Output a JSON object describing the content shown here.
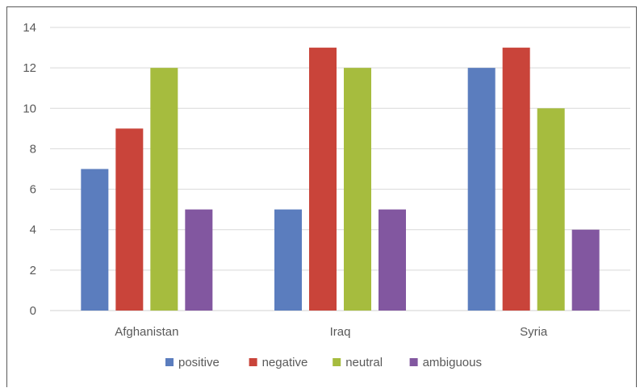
{
  "chart_data": {
    "type": "bar",
    "categories": [
      "Afghanistan",
      "Iraq",
      "Syria"
    ],
    "series": [
      {
        "name": "positive",
        "values": [
          7,
          5,
          12
        ],
        "color": "#5B7DBE"
      },
      {
        "name": "negative",
        "values": [
          9,
          13,
          13
        ],
        "color": "#C9443A"
      },
      {
        "name": "neutral",
        "values": [
          12,
          12,
          10
        ],
        "color": "#A6BC3E"
      },
      {
        "name": "ambiguous",
        "values": [
          5,
          5,
          4
        ],
        "color": "#8257A0"
      }
    ],
    "ylim": [
      0,
      14
    ],
    "yticks": [
      "0",
      "2",
      "4",
      "6",
      "8",
      "10",
      "12",
      "14"
    ],
    "grid": true,
    "legend_position": "bottom"
  }
}
